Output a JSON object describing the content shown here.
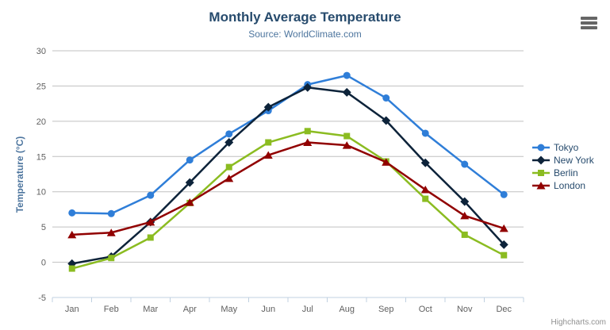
{
  "header": {
    "title": "Monthly Average Temperature",
    "subtitle": "Source: WorldClimate.com"
  },
  "credit": "Highcharts.com",
  "chart_data": {
    "type": "line",
    "title": "Monthly Average Temperature",
    "subtitle": "Source: WorldClimate.com",
    "categories": [
      "Jan",
      "Feb",
      "Mar",
      "Apr",
      "May",
      "Jun",
      "Jul",
      "Aug",
      "Sep",
      "Oct",
      "Nov",
      "Dec"
    ],
    "series": [
      {
        "name": "Tokyo",
        "color": "#2f7ed8",
        "marker": "circle",
        "values": [
          7.0,
          6.9,
          9.5,
          14.5,
          18.2,
          21.5,
          25.2,
          26.5,
          23.3,
          18.3,
          13.9,
          9.6
        ]
      },
      {
        "name": "New York",
        "color": "#0d233a",
        "marker": "diamond",
        "values": [
          -0.2,
          0.8,
          5.7,
          11.3,
          17.0,
          22.0,
          24.8,
          24.1,
          20.1,
          14.1,
          8.6,
          2.5
        ]
      },
      {
        "name": "Berlin",
        "color": "#8bbc21",
        "marker": "square",
        "values": [
          -0.9,
          0.6,
          3.5,
          8.4,
          13.5,
          17.0,
          18.6,
          17.9,
          14.3,
          9.0,
          3.9,
          1.0
        ]
      },
      {
        "name": "London",
        "color": "#910000",
        "marker": "triangle",
        "values": [
          3.9,
          4.2,
          5.7,
          8.5,
          11.9,
          15.2,
          17.0,
          16.6,
          14.2,
          10.3,
          6.6,
          4.8
        ]
      }
    ],
    "xlabel": "",
    "ylabel": "Temperature (°C)",
    "ylim": [
      -5,
      30
    ],
    "ytick_step": 5,
    "grid": true,
    "legend_position": "right",
    "grid_color": "#C0C0C0",
    "axis_line_color": "#C0D0E0",
    "label_color": "#606060"
  }
}
